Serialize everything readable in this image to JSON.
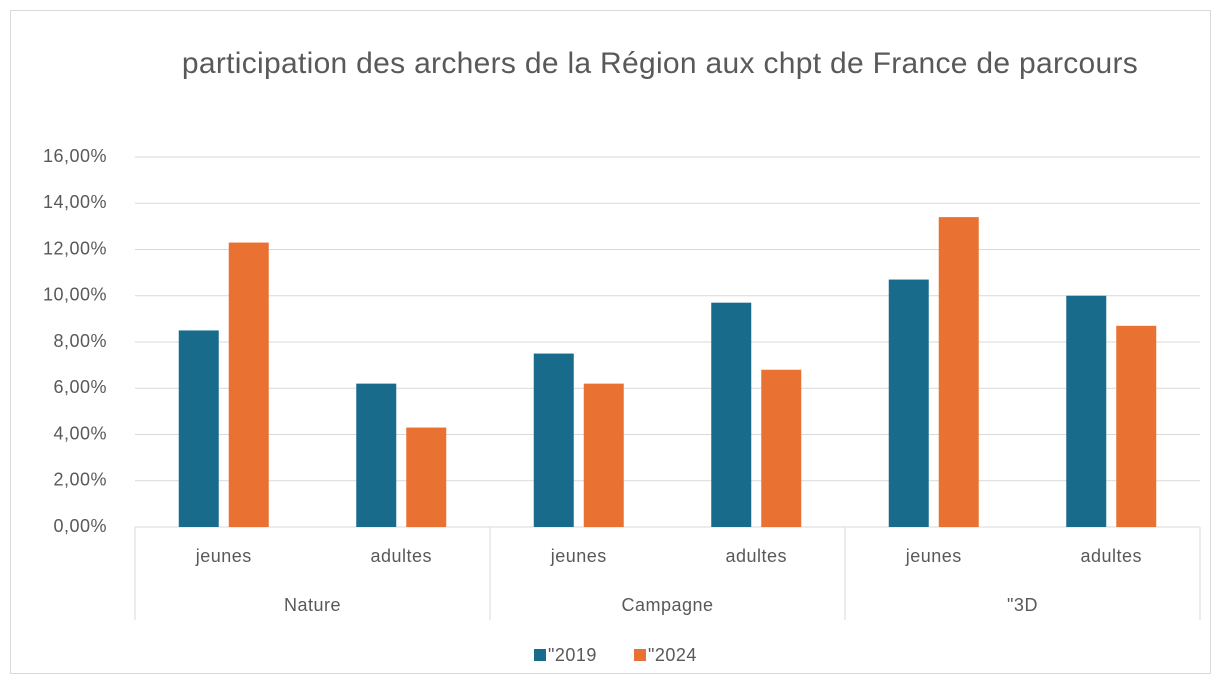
{
  "chart_data": {
    "type": "bar",
    "title": "participation des archers de la Région aux chpt de France de parcours",
    "categories": [
      "jeunes",
      "adultes",
      "jeunes",
      "adultes",
      "jeunes",
      "adultes"
    ],
    "groups": [
      "Nature",
      "Campagne",
      "\"3D"
    ],
    "series": [
      {
        "name": "\"2019",
        "color": "#196b8c",
        "values": [
          8.5,
          6.2,
          7.5,
          9.7,
          10.7,
          10.0
        ]
      },
      {
        "name": "\"2024",
        "color": "#e97132",
        "values": [
          12.3,
          4.3,
          6.2,
          6.8,
          13.4,
          8.7
        ]
      }
    ],
    "ylim": [
      0,
      16
    ],
    "yticks": [
      {
        "value": 0,
        "label": "0,00%"
      },
      {
        "value": 2,
        "label": "2,00%"
      },
      {
        "value": 4,
        "label": "4,00%"
      },
      {
        "value": 6,
        "label": "6,00%"
      },
      {
        "value": 8,
        "label": "8,00%"
      },
      {
        "value": 10,
        "label": "10,00%"
      },
      {
        "value": 12,
        "label": "12,00%"
      },
      {
        "value": 14,
        "label": "14,00%"
      },
      {
        "value": 16,
        "label": "16,00%"
      }
    ],
    "grid": true,
    "legend": "bottom"
  }
}
